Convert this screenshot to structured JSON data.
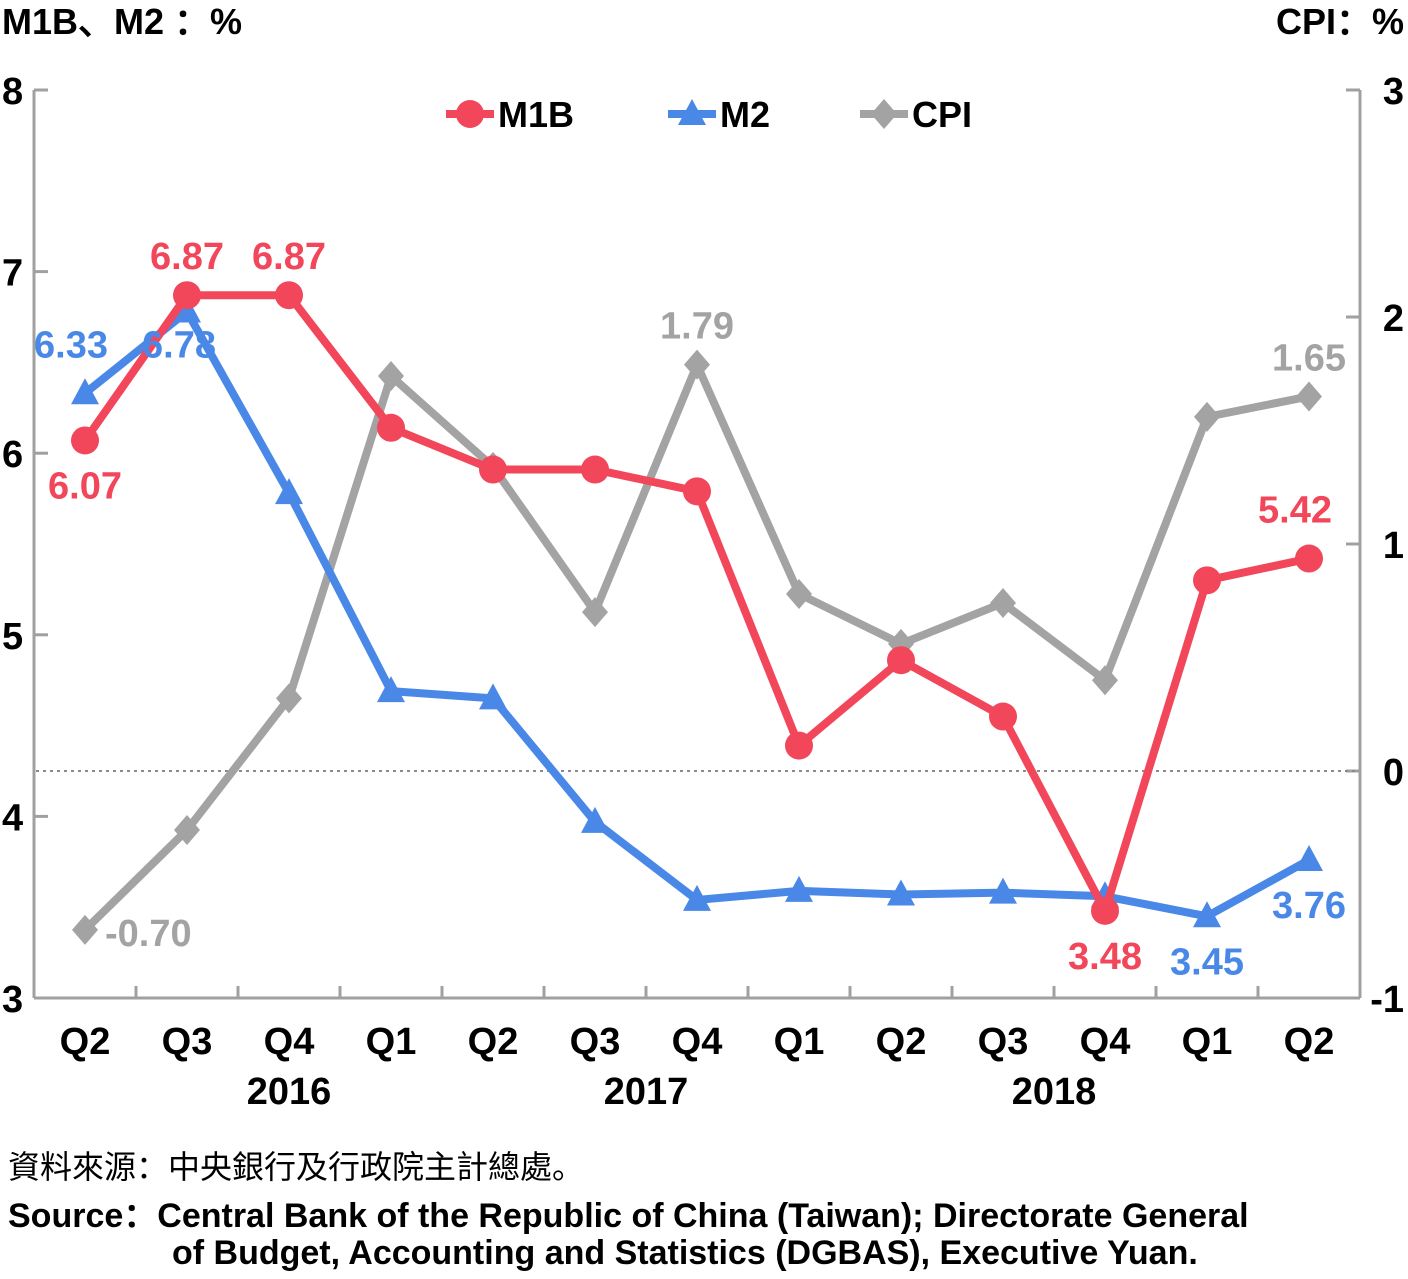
{
  "chart_data": {
    "type": "line",
    "y_left_label": "M1B、M2 ：%",
    "y_right_label": "CPI：%",
    "ylim_left": [
      3,
      8
    ],
    "ylim_right": [
      -1,
      3
    ],
    "yticks_left": [
      "3",
      "4",
      "5",
      "6",
      "7",
      "8"
    ],
    "yticks_right": [
      "-1",
      "0",
      "1",
      "2",
      "3"
    ],
    "categories": [
      "Q2",
      "Q3",
      "Q4",
      "Q1",
      "Q2",
      "Q3",
      "Q4",
      "Q1",
      "Q2",
      "Q3",
      "Q4",
      "Q1",
      "Q2"
    ],
    "years": [
      {
        "label": "2016",
        "span": [
          1,
          4
        ]
      },
      {
        "label": "2017",
        "span": [
          4,
          8
        ]
      },
      {
        "label": "2018",
        "span": [
          8,
          12
        ]
      }
    ],
    "zero_reference_line": "dotted at CPI 0",
    "legend_position": "top-center",
    "series": [
      {
        "name": "M1B",
        "axis": "left",
        "color": "#f2465a",
        "marker": "circle",
        "values": [
          6.07,
          6.87,
          6.87,
          6.14,
          5.91,
          5.91,
          5.79,
          4.39,
          4.86,
          4.55,
          3.48,
          5.3,
          5.42
        ],
        "labels": [
          {
            "index": 0,
            "text": "6.07",
            "pos": "below"
          },
          {
            "index": 1,
            "text": "6.87",
            "pos": "above"
          },
          {
            "index": 2,
            "text": "6.87",
            "pos": "above"
          },
          {
            "index": 10,
            "text": "3.48",
            "pos": "below"
          },
          {
            "index": 12,
            "text": "5.42",
            "pos": "above-left"
          }
        ]
      },
      {
        "name": "M2",
        "axis": "left",
        "color": "#4a88e8",
        "marker": "triangle",
        "values": [
          6.33,
          6.78,
          5.78,
          4.69,
          4.65,
          3.97,
          3.54,
          3.59,
          3.57,
          3.58,
          3.56,
          3.45,
          3.76
        ],
        "labels": [
          {
            "index": 0,
            "text": "6.33",
            "pos": "above-left"
          },
          {
            "index": 1,
            "text": "6.78",
            "pos": "below-left"
          },
          {
            "index": 11,
            "text": "3.45",
            "pos": "below"
          },
          {
            "index": 12,
            "text": "3.76",
            "pos": "below"
          }
        ]
      },
      {
        "name": "CPI",
        "axis": "right",
        "color": "#a3a3a3",
        "marker": "diamond",
        "values": [
          -0.7,
          -0.26,
          0.32,
          1.74,
          1.34,
          0.7,
          1.79,
          0.78,
          0.56,
          0.74,
          0.4,
          1.56,
          1.65
        ],
        "labels": [
          {
            "index": 0,
            "text": "-0.70",
            "pos": "right"
          },
          {
            "index": 6,
            "text": "1.79",
            "pos": "above"
          },
          {
            "index": 12,
            "text": "1.65",
            "pos": "above"
          }
        ]
      }
    ]
  },
  "source": {
    "zh": "資料來源：中央銀行及行政院主計總處。",
    "en_line1": "Source：Central Bank of the Republic of China (Taiwan); Directorate General",
    "en_line2": "of Budget, Accounting and Statistics (DGBAS), Executive Yuan."
  }
}
